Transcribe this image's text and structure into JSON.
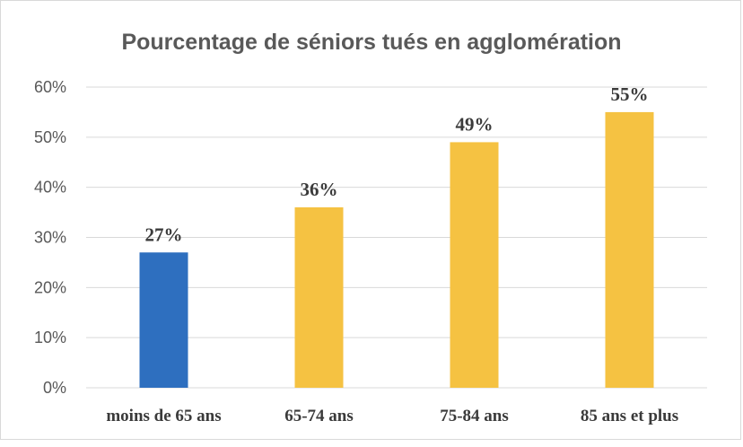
{
  "chart_data": {
    "type": "bar",
    "title": "Pourcentage de séniors tués en agglomération",
    "categories": [
      "moins de 65 ans",
      "65-74 ans",
      "75-84 ans",
      "85 ans et plus"
    ],
    "values": [
      27,
      36,
      49,
      55
    ],
    "data_labels": [
      "27%",
      "36%",
      "49%",
      "55%"
    ],
    "ylim": [
      0,
      60
    ],
    "yticks": [
      0,
      10,
      20,
      30,
      40,
      50,
      60
    ],
    "ytick_labels": [
      "0%",
      "10%",
      "20%",
      "30%",
      "40%",
      "50%",
      "60%"
    ],
    "bar_colors": [
      "#2e6fbf",
      "#f5c242",
      "#f5c242",
      "#f5c242"
    ],
    "grid": true,
    "legend": "none",
    "xlabel": "",
    "ylabel": ""
  }
}
